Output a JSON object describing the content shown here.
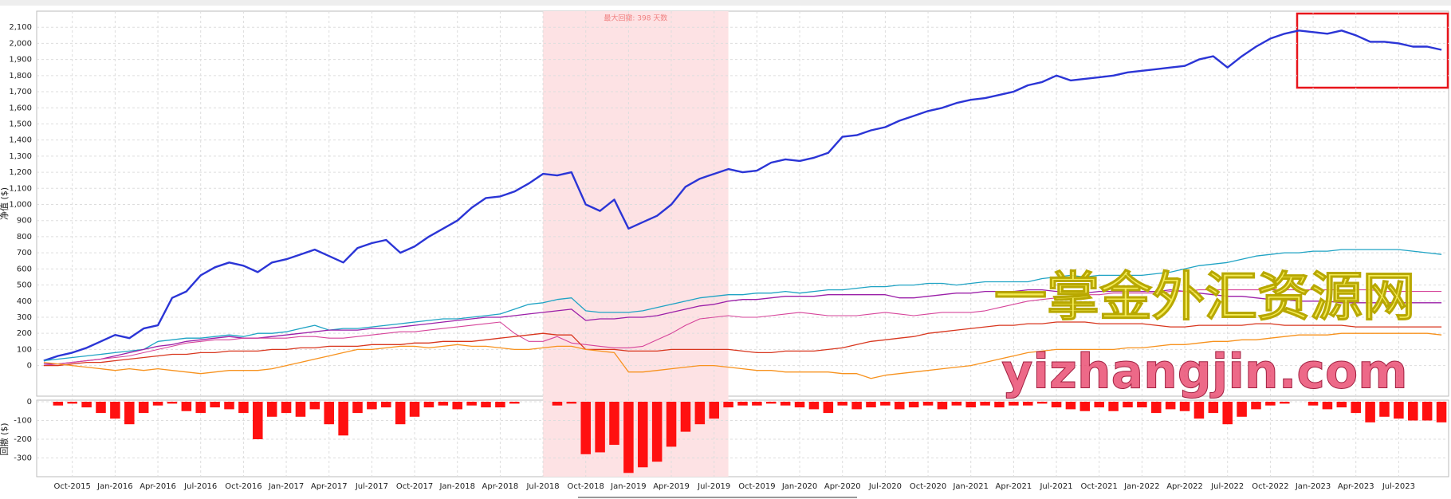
{
  "chart_data": [
    {
      "type": "line",
      "y_label": "净值 ($)",
      "grid": true,
      "annotation": "最大回撤: 398 天数",
      "highlight": {
        "start": 35,
        "end": 48,
        "color": "#fde2e4"
      },
      "watermark": [
        "一掌金外汇资源网",
        "yizhangjin.com"
      ],
      "categories": [
        null,
        null,
        "Oct-2015",
        null,
        null,
        "Jan-2016",
        null,
        null,
        "Apr-2016",
        null,
        null,
        "Jul-2016",
        null,
        null,
        "Oct-2016",
        null,
        null,
        "Jan-2017",
        null,
        null,
        "Apr-2017",
        null,
        null,
        "Jul-2017",
        null,
        null,
        "Oct-2017",
        null,
        null,
        "Jan-2018",
        null,
        null,
        "Apr-2018",
        null,
        null,
        "Jul-2018",
        null,
        null,
        "Oct-2018",
        null,
        null,
        "Jan-2019",
        null,
        null,
        "Apr-2019",
        null,
        null,
        "Jul-2019",
        null,
        null,
        "Oct-2019",
        null,
        null,
        "Jan-2020",
        null,
        null,
        "Apr-2020",
        null,
        null,
        "Jul-2020",
        null,
        null,
        "Oct-2020",
        null,
        null,
        "Jan-2021",
        null,
        null,
        "Apr-2021",
        null,
        null,
        "Jul-2021",
        null,
        null,
        "Oct-2021",
        null,
        null,
        "Jan-2022",
        null,
        null,
        "Apr-2022",
        null,
        null,
        "Jul-2022",
        null,
        null,
        "Oct-2022",
        null,
        null,
        "Jan-2023",
        null,
        null,
        "Apr-2023",
        null,
        null,
        "Jul-2023",
        null,
        null,
        null
      ],
      "ylim": [
        -190,
        2200
      ],
      "yticks": [
        0,
        100,
        200,
        300,
        400,
        500,
        600,
        700,
        800,
        900,
        {
          "value": 1000,
          "label": "1,000"
        },
        {
          "value": 1100,
          "label": "1,100"
        },
        {
          "value": 1200,
          "label": "1,200"
        },
        {
          "value": 1300,
          "label": "1,300"
        },
        {
          "value": 1400,
          "label": "1,400"
        },
        {
          "value": 1500,
          "label": "1,500"
        },
        {
          "value": 1600,
          "label": "1,600"
        },
        {
          "value": 1700,
          "label": "1,700"
        },
        {
          "value": 1800,
          "label": "1,800"
        },
        {
          "value": 1900,
          "label": "1,900"
        },
        {
          "value": 2000,
          "label": "2,000"
        },
        {
          "value": 2100,
          "label": "2,100"
        }
      ],
      "series": [
        {
          "color": "#2b35d6",
          "width": 2.4,
          "values": [
            30,
            60,
            80,
            110,
            150,
            190,
            170,
            230,
            250,
            420,
            460,
            560,
            610,
            640,
            620,
            580,
            640,
            660,
            690,
            720,
            680,
            640,
            730,
            760,
            780,
            700,
            740,
            800,
            850,
            900,
            980,
            1040,
            1050,
            1080,
            1130,
            1190,
            1180,
            1200,
            1000,
            960,
            1030,
            850,
            890,
            930,
            1000,
            1110,
            1160,
            1190,
            1220,
            1200,
            1210,
            1260,
            1280,
            1270,
            1290,
            1320,
            1420,
            1430,
            1460,
            1480,
            1520,
            1550,
            1580,
            1600,
            1630,
            1650,
            1660,
            1680,
            1700,
            1740,
            1760,
            1800,
            1770,
            1780,
            1790,
            1800,
            1820,
            1830,
            1840,
            1850,
            1860,
            1900,
            1920,
            1850,
            1920,
            1980,
            2030,
            2060,
            2080,
            2070,
            2060,
            2080,
            2050,
            2010,
            2010,
            2000,
            1980,
            1980,
            1960
          ]
        },
        {
          "color": "#1fa3c4",
          "width": 1.3,
          "values": [
            30,
            40,
            50,
            60,
            70,
            80,
            90,
            100,
            150,
            160,
            170,
            170,
            180,
            190,
            180,
            200,
            200,
            210,
            230,
            250,
            220,
            230,
            230,
            240,
            250,
            260,
            270,
            280,
            290,
            290,
            300,
            310,
            320,
            350,
            380,
            390,
            410,
            420,
            340,
            330,
            330,
            330,
            340,
            360,
            380,
            400,
            420,
            430,
            440,
            440,
            450,
            450,
            460,
            450,
            460,
            470,
            470,
            480,
            490,
            490,
            500,
            500,
            510,
            510,
            500,
            510,
            520,
            520,
            520,
            520,
            540,
            550,
            560,
            550,
            560,
            560,
            560,
            560,
            570,
            580,
            600,
            620,
            630,
            640,
            660,
            680,
            690,
            700,
            700,
            710,
            710,
            720,
            720,
            720,
            720,
            720,
            710,
            700,
            690
          ]
        },
        {
          "color": "#9b1fa8",
          "width": 1.3,
          "values": [
            10,
            10,
            20,
            30,
            40,
            60,
            80,
            100,
            120,
            130,
            150,
            160,
            170,
            180,
            170,
            170,
            180,
            190,
            200,
            210,
            220,
            220,
            220,
            230,
            230,
            240,
            250,
            260,
            270,
            280,
            290,
            300,
            300,
            310,
            320,
            330,
            340,
            350,
            280,
            290,
            290,
            300,
            300,
            310,
            330,
            350,
            370,
            380,
            400,
            410,
            410,
            420,
            430,
            430,
            430,
            440,
            440,
            440,
            440,
            440,
            420,
            420,
            430,
            440,
            450,
            450,
            460,
            460,
            460,
            470,
            470,
            460,
            460,
            450,
            460,
            460,
            460,
            460,
            460,
            470,
            460,
            450,
            440,
            430,
            430,
            420,
            410,
            410,
            400,
            400,
            400,
            390,
            390,
            390,
            390,
            390,
            390,
            390,
            390
          ]
        },
        {
          "color": "#d6449a",
          "width": 1.1,
          "values": [
            0,
            10,
            20,
            30,
            40,
            50,
            60,
            80,
            100,
            120,
            140,
            150,
            160,
            160,
            170,
            170,
            170,
            170,
            180,
            180,
            170,
            170,
            180,
            190,
            200,
            210,
            210,
            220,
            230,
            240,
            250,
            260,
            270,
            200,
            150,
            150,
            180,
            140,
            130,
            120,
            110,
            110,
            120,
            160,
            200,
            250,
            290,
            300,
            310,
            300,
            300,
            310,
            320,
            330,
            320,
            310,
            310,
            310,
            320,
            330,
            320,
            310,
            320,
            330,
            330,
            330,
            340,
            360,
            380,
            400,
            410,
            420,
            430,
            440,
            440,
            450,
            450,
            450,
            450,
            460,
            460,
            470,
            470,
            470,
            470,
            470,
            470,
            470,
            470,
            470,
            470,
            470,
            470,
            470,
            460,
            460,
            460,
            460,
            460
          ]
        },
        {
          "color": "#d8361e",
          "width": 1.3,
          "values": [
            0,
            0,
            10,
            20,
            20,
            30,
            40,
            50,
            60,
            70,
            70,
            80,
            80,
            90,
            90,
            90,
            100,
            100,
            110,
            110,
            120,
            120,
            120,
            130,
            130,
            130,
            140,
            140,
            150,
            150,
            150,
            160,
            170,
            180,
            190,
            200,
            190,
            190,
            100,
            100,
            100,
            90,
            90,
            90,
            100,
            100,
            100,
            100,
            100,
            90,
            80,
            80,
            90,
            90,
            90,
            100,
            110,
            130,
            150,
            160,
            170,
            180,
            200,
            210,
            220,
            230,
            240,
            250,
            250,
            260,
            260,
            270,
            270,
            270,
            260,
            260,
            260,
            260,
            250,
            240,
            240,
            250,
            250,
            250,
            250,
            260,
            260,
            250,
            250,
            250,
            250,
            250,
            240,
            240,
            240,
            240,
            240,
            240,
            240
          ]
        },
        {
          "color": "#f7921e",
          "width": 1.3,
          "values": [
            20,
            10,
            0,
            -10,
            -20,
            -30,
            -20,
            -30,
            -20,
            -30,
            -40,
            -50,
            -40,
            -30,
            -30,
            -30,
            -20,
            0,
            20,
            40,
            60,
            80,
            100,
            100,
            110,
            120,
            120,
            110,
            120,
            130,
            120,
            120,
            110,
            100,
            100,
            110,
            120,
            120,
            100,
            90,
            80,
            -40,
            -40,
            -30,
            -20,
            -10,
            0,
            0,
            -10,
            -20,
            -30,
            -30,
            -40,
            -40,
            -40,
            -40,
            -50,
            -50,
            -80,
            -60,
            -50,
            -40,
            -30,
            -20,
            -10,
            0,
            20,
            40,
            60,
            80,
            90,
            100,
            100,
            100,
            100,
            100,
            110,
            110,
            120,
            130,
            130,
            140,
            150,
            150,
            160,
            160,
            170,
            180,
            190,
            190,
            190,
            200,
            200,
            200,
            200,
            200,
            200,
            200,
            190
          ]
        }
      ]
    },
    {
      "type": "bar",
      "y_label": "回撤 ($)",
      "color": "#ff1010",
      "ylim": [
        -400,
        0
      ],
      "yticks": [
        0,
        -100,
        -200,
        -300
      ],
      "values": [
        0,
        -20,
        -10,
        -30,
        -60,
        -90,
        -120,
        -60,
        -20,
        -10,
        -50,
        -60,
        -30,
        -40,
        -60,
        -200,
        -80,
        -60,
        -80,
        -40,
        -120,
        -180,
        -60,
        -40,
        -30,
        -120,
        -80,
        -30,
        -20,
        -40,
        -20,
        -30,
        -30,
        -10,
        0,
        0,
        -20,
        -10,
        -280,
        -270,
        -230,
        -380,
        -350,
        -320,
        -240,
        -160,
        -120,
        -90,
        -30,
        -20,
        -20,
        -10,
        -20,
        -30,
        -40,
        -60,
        -20,
        -40,
        -30,
        -20,
        -40,
        -30,
        -20,
        -40,
        -20,
        -30,
        -20,
        -30,
        -20,
        -20,
        -10,
        -30,
        -40,
        -50,
        -30,
        -50,
        -30,
        -30,
        -60,
        -40,
        -50,
        -90,
        -60,
        -120,
        -80,
        -40,
        -20,
        -10,
        0,
        -20,
        -40,
        -30,
        -60,
        -110,
        -80,
        -90,
        -100,
        -100,
        -110
      ]
    }
  ]
}
